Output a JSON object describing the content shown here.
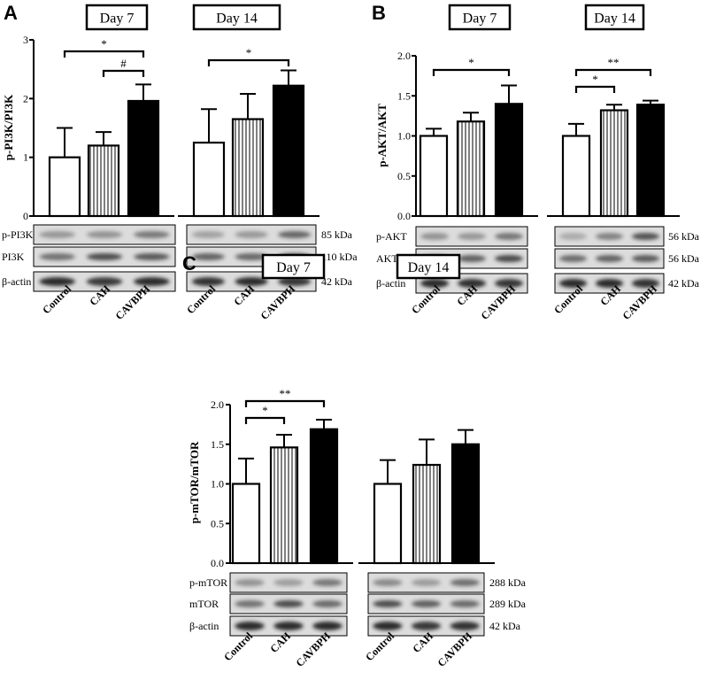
{
  "figure": {
    "background": "#ffffff",
    "ink": "#000000"
  },
  "chart_data": [
    {
      "id": "A",
      "panel_label": "A",
      "type": "bar",
      "ylabel": "p-PI3K/PI3K",
      "ylim": [
        0,
        3
      ],
      "yticks": [
        "0",
        "1",
        "2",
        "3"
      ],
      "categories": [
        "Control",
        "CAH",
        "CAVBPH"
      ],
      "fills": [
        "white",
        "striped",
        "black"
      ],
      "groups": [
        {
          "label": "Day 7",
          "values": [
            1.0,
            1.2,
            1.96
          ],
          "errors": [
            0.5,
            0.23,
            0.28
          ],
          "significance": [
            {
              "from": 0,
              "to": 2,
              "label": "*"
            },
            {
              "from": 1,
              "to": 2,
              "label": "#"
            }
          ]
        },
        {
          "label": "Day 14",
          "values": [
            1.25,
            1.65,
            2.22
          ],
          "errors": [
            0.57,
            0.43,
            0.26
          ],
          "significance": [
            {
              "from": 0,
              "to": 2,
              "label": "*"
            }
          ]
        }
      ],
      "blots": [
        {
          "name": "p-PI3K",
          "kda": "85 kDa"
        },
        {
          "name": "PI3K",
          "kda": "110 kDa"
        },
        {
          "name": "β-actin",
          "kda": "42 kDa"
        }
      ]
    },
    {
      "id": "B",
      "panel_label": "B",
      "type": "bar",
      "ylabel": "p-AKT/AKT",
      "ylim": [
        0,
        2.0
      ],
      "yticks": [
        "0.0",
        "0.5",
        "1.0",
        "1.5",
        "2.0"
      ],
      "categories": [
        "Control",
        "CAH",
        "CAVBPH"
      ],
      "fills": [
        "white",
        "striped",
        "black"
      ],
      "groups": [
        {
          "label": "Day 7",
          "values": [
            1.0,
            1.18,
            1.4
          ],
          "errors": [
            0.09,
            0.11,
            0.23
          ],
          "significance": [
            {
              "from": 0,
              "to": 2,
              "label": "*"
            }
          ]
        },
        {
          "label": "Day 14",
          "values": [
            1.0,
            1.32,
            1.39
          ],
          "errors": [
            0.15,
            0.07,
            0.05
          ],
          "significance": [
            {
              "from": 0,
              "to": 1,
              "label": "*"
            },
            {
              "from": 0,
              "to": 2,
              "label": "**"
            }
          ]
        }
      ],
      "blots": [
        {
          "name": "p-AKT",
          "kda": "56 kDa"
        },
        {
          "name": "AKT",
          "kda": "56 kDa"
        },
        {
          "name": "β-actin",
          "kda": "42 kDa"
        }
      ]
    },
    {
      "id": "C",
      "panel_label": "C",
      "type": "bar",
      "ylabel": "p-mTOR/mTOR",
      "ylim": [
        0,
        2.0
      ],
      "yticks": [
        "0.0",
        "0.5",
        "1.0",
        "1.5",
        "2.0"
      ],
      "categories": [
        "Control",
        "CAH",
        "CAVBPH"
      ],
      "fills": [
        "white",
        "striped",
        "black"
      ],
      "groups": [
        {
          "label": "Day 7",
          "values": [
            1.0,
            1.46,
            1.69
          ],
          "errors": [
            0.32,
            0.16,
            0.12
          ],
          "significance": [
            {
              "from": 0,
              "to": 1,
              "label": "*"
            },
            {
              "from": 0,
              "to": 2,
              "label": "**"
            }
          ]
        },
        {
          "label": "Day 14",
          "values": [
            1.0,
            1.24,
            1.5
          ],
          "errors": [
            0.3,
            0.32,
            0.18
          ],
          "significance": []
        }
      ],
      "blots": [
        {
          "name": "p-mTOR",
          "kda": "288 kDa"
        },
        {
          "name": "mTOR",
          "kda": "289 kDa"
        },
        {
          "name": "β-actin",
          "kda": "42 kDa"
        }
      ]
    }
  ]
}
